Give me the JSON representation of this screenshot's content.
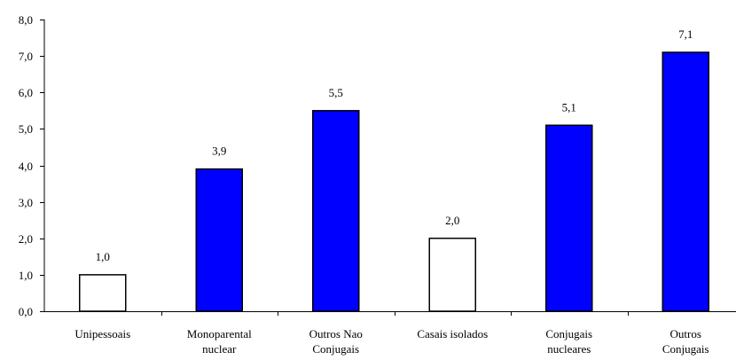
{
  "chart_data": {
    "type": "bar",
    "categories": [
      [
        "Unipessoais"
      ],
      [
        "Monoparental",
        "nuclear"
      ],
      [
        "Outros Nao",
        "Conjugais"
      ],
      [
        "Casais isolados"
      ],
      [
        "Conjugais",
        "nucleares"
      ],
      [
        "Outros",
        "Conjugais"
      ]
    ],
    "values": [
      1.0,
      3.9,
      5.5,
      2.0,
      5.1,
      7.1
    ],
    "value_labels": [
      "1,0",
      "3,9",
      "5,5",
      "2,0",
      "5,1",
      "7,1"
    ],
    "bar_fills": [
      "#FFFFFF",
      "#0000FF",
      "#0000FF",
      "#FFFFFF",
      "#0000FF",
      "#0000FF"
    ],
    "ylim": [
      0,
      8
    ],
    "yticks": [
      0,
      1,
      2,
      3,
      4,
      5,
      6,
      7,
      8
    ],
    "ytick_labels": [
      "0,0",
      "1,0",
      "2,0",
      "3,0",
      "4,0",
      "5,0",
      "6,0",
      "7,0",
      "8,0"
    ],
    "title": "",
    "xlabel": "",
    "ylabel": "",
    "grid": false,
    "legend": false
  }
}
